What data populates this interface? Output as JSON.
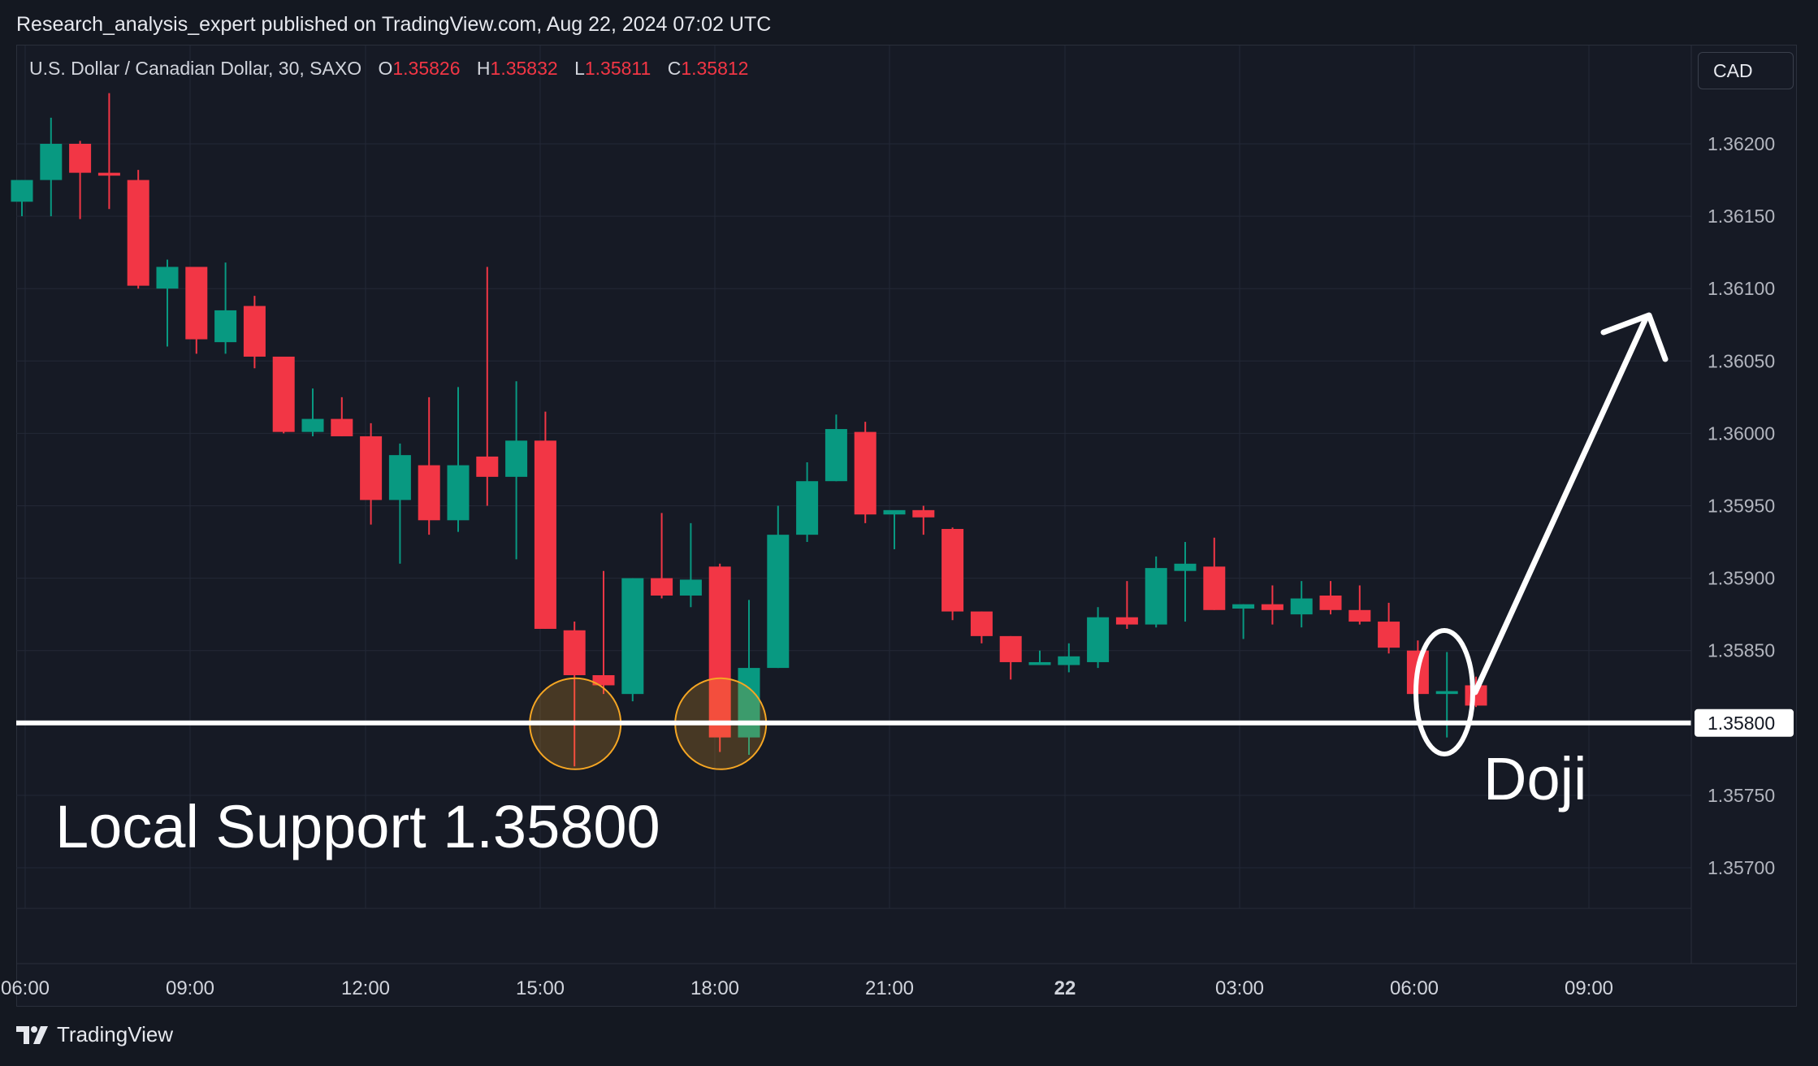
{
  "header": {
    "published": "Research_analysis_expert published on TradingView.com, Aug 22, 2024 07:02 UTC"
  },
  "symbol": {
    "title": "U.S. Dollar / Canadian Dollar, 30, SAXO",
    "open_label": "O",
    "open": "1.35826",
    "high_label": "H",
    "high": "1.35832",
    "low_label": "L",
    "low": "1.35811",
    "close_label": "C",
    "close": "1.35812"
  },
  "currency": "CAD",
  "footer": {
    "brand": "TradingView",
    "logo_icon": "tradingview-logo-icon"
  },
  "colors": {
    "background": "#161a25",
    "bullish": "#089981",
    "bearish": "#f23645",
    "support_line": "#ffffff",
    "highlight_circle": "#f5a623"
  },
  "chart_data": {
    "type": "candlestick",
    "interval": "30",
    "ylim": [
      1.35665,
      1.36245
    ],
    "y_ticks": [
      "1.36200",
      "1.36150",
      "1.36100",
      "1.36050",
      "1.36000",
      "1.35950",
      "1.35900",
      "1.35850",
      "1.35800",
      "1.35750",
      "1.35700"
    ],
    "x_ticks": [
      "06:00",
      "09:00",
      "12:00",
      "15:00",
      "18:00",
      "21:00",
      "22",
      "03:00",
      "06:00",
      "09:00"
    ],
    "candles": [
      {
        "o": 1.3616,
        "h": 1.36175,
        "l": 1.3615,
        "c": 1.36175
      },
      {
        "o": 1.36175,
        "h": 1.36218,
        "l": 1.3615,
        "c": 1.362
      },
      {
        "o": 1.362,
        "h": 1.36202,
        "l": 1.36148,
        "c": 1.3618
      },
      {
        "o": 1.3618,
        "h": 1.36235,
        "l": 1.36155,
        "c": 1.36178
      },
      {
        "o": 1.36175,
        "h": 1.36182,
        "l": 1.361,
        "c": 1.36102
      },
      {
        "o": 1.361,
        "h": 1.3612,
        "l": 1.3606,
        "c": 1.36115
      },
      {
        "o": 1.36115,
        "h": 1.36115,
        "l": 1.36055,
        "c": 1.36065
      },
      {
        "o": 1.36063,
        "h": 1.36118,
        "l": 1.36055,
        "c": 1.36085
      },
      {
        "o": 1.36088,
        "h": 1.36095,
        "l": 1.36045,
        "c": 1.36053
      },
      {
        "o": 1.36053,
        "h": 1.36053,
        "l": 1.36,
        "c": 1.36001
      },
      {
        "o": 1.36001,
        "h": 1.36031,
        "l": 1.35998,
        "c": 1.3601
      },
      {
        "o": 1.3601,
        "h": 1.36025,
        "l": 1.35998,
        "c": 1.35998
      },
      {
        "o": 1.35998,
        "h": 1.36007,
        "l": 1.35937,
        "c": 1.35954
      },
      {
        "o": 1.35954,
        "h": 1.35993,
        "l": 1.3591,
        "c": 1.35985
      },
      {
        "o": 1.35978,
        "h": 1.36025,
        "l": 1.3593,
        "c": 1.3594
      },
      {
        "o": 1.3594,
        "h": 1.36032,
        "l": 1.35932,
        "c": 1.35978
      },
      {
        "o": 1.35984,
        "h": 1.36115,
        "l": 1.3595,
        "c": 1.3597
      },
      {
        "o": 1.3597,
        "h": 1.36036,
        "l": 1.35913,
        "c": 1.35995
      },
      {
        "o": 1.35995,
        "h": 1.36015,
        "l": 1.35865,
        "c": 1.35865
      },
      {
        "o": 1.35864,
        "h": 1.3587,
        "l": 1.3577,
        "c": 1.35833
      },
      {
        "o": 1.35833,
        "h": 1.35905,
        "l": 1.3582,
        "c": 1.35826
      },
      {
        "o": 1.3582,
        "h": 1.359,
        "l": 1.35815,
        "c": 1.359
      },
      {
        "o": 1.359,
        "h": 1.35945,
        "l": 1.35886,
        "c": 1.35888
      },
      {
        "o": 1.35888,
        "h": 1.35938,
        "l": 1.3588,
        "c": 1.35899
      },
      {
        "o": 1.35908,
        "h": 1.3591,
        "l": 1.3578,
        "c": 1.3579
      },
      {
        "o": 1.3579,
        "h": 1.35885,
        "l": 1.35778,
        "c": 1.35838
      },
      {
        "o": 1.35838,
        "h": 1.3595,
        "l": 1.35838,
        "c": 1.3593
      },
      {
        "o": 1.3593,
        "h": 1.3598,
        "l": 1.35925,
        "c": 1.35967
      },
      {
        "o": 1.35967,
        "h": 1.36013,
        "l": 1.35967,
        "c": 1.36003
      },
      {
        "o": 1.36001,
        "h": 1.36008,
        "l": 1.35938,
        "c": 1.35944
      },
      {
        "o": 1.35944,
        "h": 1.35945,
        "l": 1.3592,
        "c": 1.35947
      },
      {
        "o": 1.35947,
        "h": 1.3595,
        "l": 1.3593,
        "c": 1.35942
      },
      {
        "o": 1.35934,
        "h": 1.35935,
        "l": 1.35871,
        "c": 1.35877
      },
      {
        "o": 1.35877,
        "h": 1.35877,
        "l": 1.35855,
        "c": 1.3586
      },
      {
        "o": 1.3586,
        "h": 1.3586,
        "l": 1.3583,
        "c": 1.35842
      },
      {
        "o": 1.3584,
        "h": 1.3585,
        "l": 1.3584,
        "c": 1.35842
      },
      {
        "o": 1.3584,
        "h": 1.35855,
        "l": 1.35835,
        "c": 1.35846
      },
      {
        "o": 1.35842,
        "h": 1.3588,
        "l": 1.35838,
        "c": 1.35873
      },
      {
        "o": 1.35873,
        "h": 1.35898,
        "l": 1.35865,
        "c": 1.35868
      },
      {
        "o": 1.35868,
        "h": 1.35915,
        "l": 1.35866,
        "c": 1.35907
      },
      {
        "o": 1.35905,
        "h": 1.35925,
        "l": 1.3587,
        "c": 1.3591
      },
      {
        "o": 1.35908,
        "h": 1.35928,
        "l": 1.35878,
        "c": 1.35878
      },
      {
        "o": 1.35879,
        "h": 1.35882,
        "l": 1.35858,
        "c": 1.35882
      },
      {
        "o": 1.35882,
        "h": 1.35895,
        "l": 1.35868,
        "c": 1.35878
      },
      {
        "o": 1.35875,
        "h": 1.35898,
        "l": 1.35866,
        "c": 1.35886
      },
      {
        "o": 1.35888,
        "h": 1.35898,
        "l": 1.35875,
        "c": 1.35878
      },
      {
        "o": 1.35878,
        "h": 1.35895,
        "l": 1.35868,
        "c": 1.3587
      },
      {
        "o": 1.3587,
        "h": 1.35883,
        "l": 1.35848,
        "c": 1.35852
      },
      {
        "o": 1.3585,
        "h": 1.35857,
        "l": 1.3582,
        "c": 1.3582
      },
      {
        "o": 1.3582,
        "h": 1.35849,
        "l": 1.3579,
        "c": 1.35822
      },
      {
        "o": 1.35826,
        "h": 1.35832,
        "l": 1.35811,
        "c": 1.35812
      }
    ],
    "support": {
      "price": 1.358,
      "label": "1.35800"
    },
    "annotations": {
      "support_text": "Local Support 1.35800",
      "doji_text": "Doji"
    }
  }
}
